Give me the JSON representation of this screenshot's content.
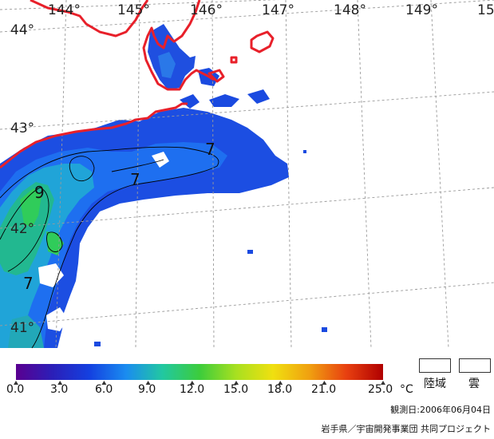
{
  "map": {
    "longitude_labels": [
      "144°",
      "145°",
      "146°",
      "147°",
      "148°",
      "149°",
      "15"
    ],
    "latitude_labels": [
      "44°",
      "43°",
      "42°",
      "41°"
    ],
    "isotherm_labels": [
      "7",
      "7",
      "9",
      "7"
    ]
  },
  "colorbar": {
    "ticks": [
      "0.0",
      "3.0",
      "6.0",
      "9.0",
      "12.0",
      "15.0",
      "18.0",
      "21.0",
      "25.0"
    ],
    "unit": "°C",
    "colors": [
      "#5a0090",
      "#2b1fb8",
      "#1440e0",
      "#1a8cf0",
      "#22c8a0",
      "#3ccc3c",
      "#a8e020",
      "#f0e010",
      "#f0a010",
      "#e84010",
      "#b00000"
    ]
  },
  "legend": {
    "land_label": "陸域",
    "cloud_label": "雲"
  },
  "footer": {
    "observation_date": "観測日:2006年06月04日",
    "credit": "岩手県／宇宙開発事業団 共同プロジェクト"
  },
  "colors": {
    "coastline": "#e8202a",
    "grid": "#9a9a9a",
    "sea_base": "#1a50e6"
  }
}
